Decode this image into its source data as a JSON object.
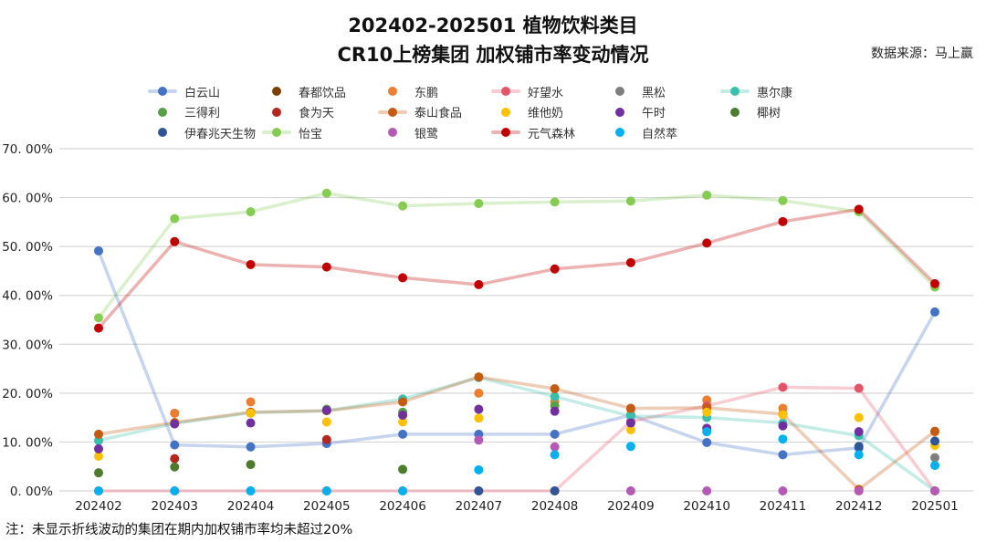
{
  "title": {
    "line1": "202402-202501 植物饮料类目",
    "line2": "CR10上榜集团 加权铺市率变动情况"
  },
  "source": "数据来源：马上赢",
  "note": "注：未显示折线波动的集团在期内加权铺市率均未超过20%",
  "chart_data": {
    "type": "line",
    "title": "202402-202501 植物饮料类目 CR10上榜集团 加权铺市率变动情况",
    "xlabel": "",
    "ylabel": "",
    "ylim": [
      0,
      70
    ],
    "grid": true,
    "legend_position": "top",
    "y_tick_values": [
      70,
      60,
      50,
      40,
      30,
      20,
      10,
      0
    ],
    "y_tick_labels": [
      "70. 00%",
      "60. 00%",
      "50. 00%",
      "40. 00%",
      "30. 00%",
      "20. 00%",
      "10. 00%",
      "0. 00%"
    ],
    "categories": [
      "202402",
      "202403",
      "202404",
      "202405",
      "202406",
      "202407",
      "202408",
      "202409",
      "202410",
      "202411",
      "202412",
      "202501"
    ],
    "series": [
      {
        "name": "白云山",
        "color": "#4472C4",
        "line": true,
        "values": [
          49.1,
          9.4,
          9.0,
          9.7,
          11.6,
          11.6,
          11.6,
          15.5,
          9.9,
          7.4,
          8.8,
          36.6
        ]
      },
      {
        "name": "春都饮品",
        "color": "#7B3F00",
        "line": false,
        "values": [
          null,
          null,
          null,
          null,
          null,
          null,
          null,
          null,
          null,
          null,
          null,
          null
        ]
      },
      {
        "name": "东鹏",
        "color": "#ED7D31",
        "line": false,
        "values": [
          null,
          15.9,
          18.2,
          null,
          18.4,
          20.0,
          18.3,
          16.7,
          18.6,
          16.9,
          null,
          12.1
        ]
      },
      {
        "name": "好望水",
        "color": "#E4556A",
        "line": true,
        "values": [
          0,
          0,
          0,
          0,
          0,
          0,
          0,
          14.2,
          17.4,
          21.2,
          21.0,
          0
        ]
      },
      {
        "name": "黑松",
        "color": "#7F7F7F",
        "line": false,
        "values": [
          null,
          null,
          null,
          null,
          null,
          null,
          null,
          null,
          null,
          null,
          null,
          6.8
        ]
      },
      {
        "name": "惠尔康",
        "color": "#3BBFAD",
        "line": true,
        "values": [
          10.3,
          13.8,
          16.0,
          16.4,
          18.8,
          23.2,
          19.3,
          15.3,
          15.0,
          13.9,
          11.3,
          0
        ]
      },
      {
        "name": "三得利",
        "color": "#55A049",
        "line": false,
        "values": [
          null,
          null,
          null,
          16.7,
          16.1,
          null,
          17.4,
          null,
          null,
          null,
          null,
          null
        ]
      },
      {
        "name": "食为天",
        "color": "#B3281E",
        "line": false,
        "values": [
          null,
          6.6,
          null,
          10.5,
          null,
          null,
          null,
          null,
          null,
          null,
          null,
          null
        ]
      },
      {
        "name": "泰山食品",
        "color": "#C55A11",
        "line": true,
        "values": [
          11.6,
          14.0,
          16.1,
          16.4,
          18.2,
          23.3,
          20.9,
          16.9,
          17.0,
          15.7,
          0.3,
          12.2
        ]
      },
      {
        "name": "维他奶",
        "color": "#FFC000",
        "line": false,
        "values": [
          7.1,
          13.7,
          15.9,
          14.1,
          14.1,
          14.9,
          null,
          12.5,
          16.1,
          15.6,
          15.0,
          9.3
        ]
      },
      {
        "name": "午时",
        "color": "#7030A0",
        "line": false,
        "values": [
          8.6,
          13.7,
          13.9,
          16.5,
          15.5,
          16.7,
          16.3,
          13.9,
          12.8,
          13.3,
          12.1,
          null
        ]
      },
      {
        "name": "椰树",
        "color": "#4E7C2F",
        "line": false,
        "values": [
          3.7,
          4.9,
          5.4,
          null,
          4.4,
          null,
          null,
          null,
          null,
          null,
          null,
          null
        ]
      },
      {
        "name": "伊春兆天生物",
        "color": "#2F5597",
        "line": false,
        "values": [
          null,
          null,
          null,
          null,
          null,
          0,
          0,
          null,
          null,
          null,
          9.1,
          10.2
        ]
      },
      {
        "name": "怡宝",
        "color": "#86CB52",
        "line": true,
        "values": [
          35.4,
          55.7,
          57.1,
          60.9,
          58.3,
          58.8,
          59.1,
          59.3,
          60.5,
          59.4,
          57.1,
          41.7
        ]
      },
      {
        "name": "银鹭",
        "color": "#B55AB4",
        "line": false,
        "values": [
          null,
          null,
          null,
          null,
          null,
          10.4,
          9.0,
          0,
          0,
          0,
          0,
          0
        ]
      },
      {
        "name": "元气森林",
        "color": "#C00000",
        "line": true,
        "values": [
          33.3,
          51.0,
          46.3,
          45.8,
          43.6,
          42.2,
          45.4,
          46.7,
          50.7,
          55.1,
          57.6,
          42.4
        ]
      },
      {
        "name": "自然萃",
        "color": "#00B0F0",
        "line": false,
        "values": [
          0,
          0,
          0,
          0,
          0,
          4.3,
          7.4,
          9.1,
          12.1,
          10.6,
          7.4,
          5.2
        ]
      }
    ]
  }
}
